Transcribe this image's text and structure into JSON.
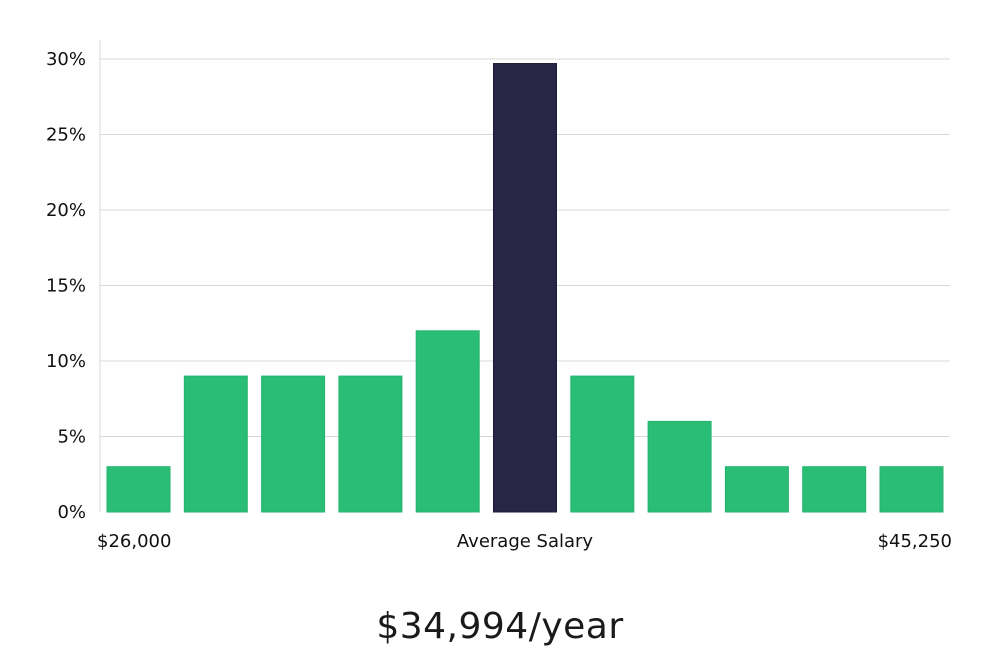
{
  "chart_data": {
    "type": "bar",
    "title": "",
    "xlabel": "",
    "ylabel": "",
    "ylim": [
      0,
      30
    ],
    "y_ticks": [
      0,
      5,
      10,
      15,
      20,
      25,
      30
    ],
    "y_tick_format": "%",
    "grid": true,
    "values": [
      3,
      9,
      9,
      9,
      12,
      29.7,
      9,
      6,
      3,
      3,
      3
    ],
    "highlight_index": 5,
    "x_labels": {
      "left": "$26,000",
      "center": "Average Salary",
      "right": "$45,250"
    }
  },
  "colors": {
    "bar": "#2ABD76",
    "highlight": "#282645",
    "grid": "#d8d8d8",
    "axis": "#d8d8d8"
  },
  "summary": "$34,994/year"
}
